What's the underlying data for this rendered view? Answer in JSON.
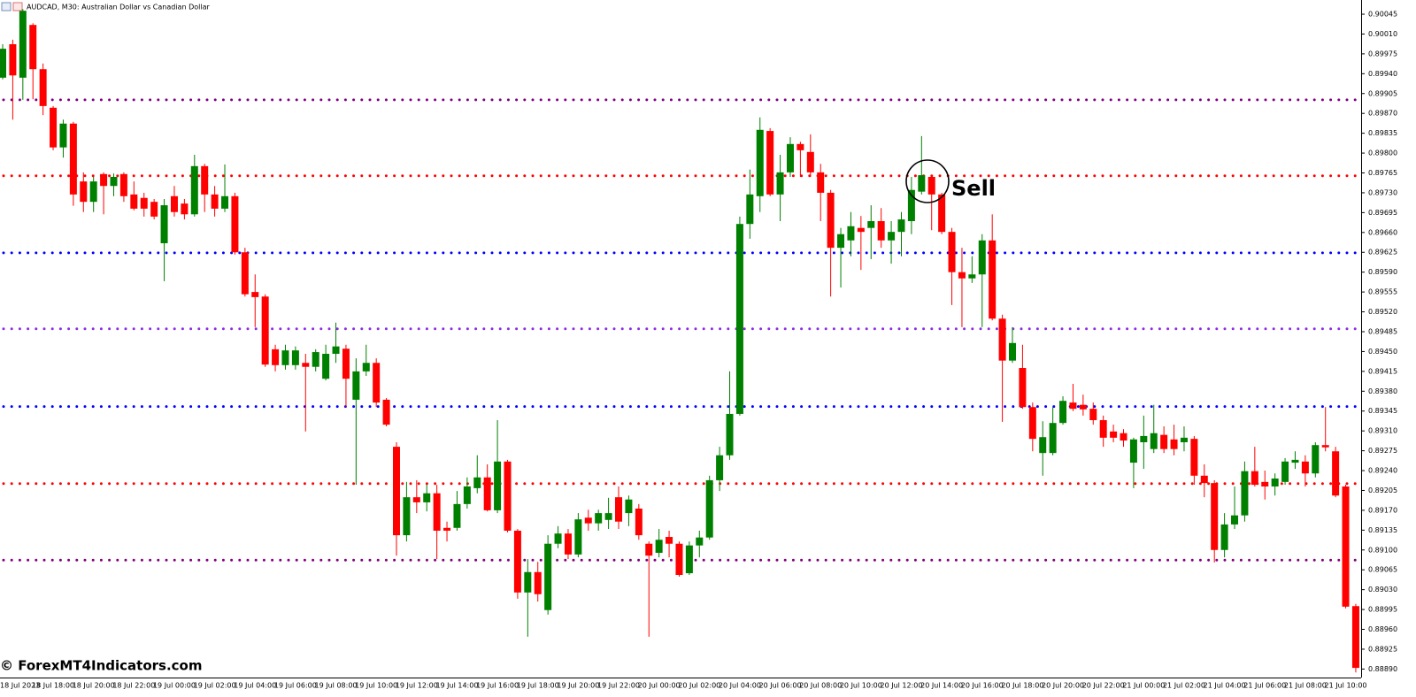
{
  "chart_data": {
    "type": "candlestick",
    "title": "AUDCAD, M30:  Australian Dollar vs Canadian Dollar",
    "watermark": "© ForexMT4Indicators.com",
    "annotation": "Sell",
    "up_color": "#008000",
    "down_color": "#ff0000",
    "categories": [
      "18 Jul 2023",
      null,
      null,
      null,
      null,
      "18 Jul 18:00",
      null,
      null,
      null,
      "18 Jul 20:00",
      null,
      null,
      null,
      "18 Jul 22:00",
      null,
      null,
      null,
      "19 Jul 00:00",
      null,
      null,
      null,
      "19 Jul 02:00",
      null,
      null,
      null,
      "19 Jul 04:00",
      null,
      null,
      null,
      "19 Jul 06:00",
      null,
      null,
      null,
      "19 Jul 08:00",
      null,
      null,
      null,
      "19 Jul 10:00",
      null,
      null,
      null,
      "19 Jul 12:00",
      null,
      null,
      null,
      "19 Jul 14:00",
      null,
      null,
      null,
      "19 Jul 16:00",
      null,
      null,
      null,
      "19 Jul 18:00",
      null,
      null,
      null,
      "19 Jul 20:00",
      null,
      null,
      null,
      "19 Jul 22:00",
      null,
      null,
      null,
      "20 Jul 00:00",
      null,
      null,
      null,
      "20 Jul 02:00",
      null,
      null,
      null,
      "20 Jul 04:00",
      null,
      null,
      null,
      "20 Jul 06:00",
      null,
      null,
      null,
      "20 Jul 08:00",
      null,
      null,
      null,
      "20 Jul 10:00",
      null,
      null,
      null,
      "20 Jul 12:00",
      null,
      null,
      null,
      "20 Jul 14:00",
      null,
      null,
      null,
      "20 Jul 16:00",
      null,
      null,
      null,
      "20 Jul 18:00",
      null,
      null,
      null,
      "20 Jul 20:00",
      null,
      null,
      null,
      "20 Jul 22:00",
      null,
      null,
      null,
      "21 Jul 00:00",
      null,
      null,
      null,
      "21 Jul 02:00",
      null,
      null,
      null,
      "21 Jul 04:00",
      null,
      null,
      null,
      "21 Jul 06:00",
      null,
      null,
      null,
      "21 Jul 08:00",
      null,
      null,
      null,
      "21 Jul 10:00",
      null
    ],
    "open": [
      0.89933,
      0.89992,
      0.89933,
      0.90026,
      0.89948,
      0.8988,
      0.8981,
      0.89852,
      0.8975,
      0.89714,
      0.89763,
      0.89742,
      0.89763,
      0.89727,
      0.89721,
      0.89714,
      0.89641,
      0.89724,
      0.89711,
      0.89692,
      0.89777,
      0.89727,
      0.89702,
      0.89724,
      0.89625,
      0.89555,
      0.89547,
      0.89454,
      0.89426,
      0.89426,
      0.8943,
      0.89423,
      0.89402,
      0.89446,
      0.89455,
      0.89365,
      0.89415,
      0.8943,
      0.89365,
      0.89282,
      0.89126,
      0.89193,
      0.89184,
      0.892,
      0.89139,
      0.89139,
      0.89181,
      0.89209,
      0.89228,
      0.8917,
      0.89256,
      0.89134,
      0.89025,
      0.89061,
      0.88994,
      0.89111,
      0.89129,
      0.89092,
      0.89157,
      0.89147,
      0.89153,
      0.89193,
      0.89165,
      0.89173,
      0.89111,
      0.89095,
      0.89123,
      0.89111,
      0.89059,
      0.89108,
      0.89122,
      0.89223,
      0.89267,
      0.8934,
      0.89675,
      0.89724,
      0.89839,
      0.89727,
      0.89766,
      0.89816,
      0.89802,
      0.89766,
      0.8973,
      0.89633,
      0.89646,
      0.89668,
      0.89668,
      0.8968,
      0.89646,
      0.89661,
      0.8968,
      0.89732,
      0.89758,
      0.89727,
      0.89661,
      0.8959,
      0.89579,
      0.89586,
      0.89646,
      0.89508,
      0.89434,
      0.89421,
      0.89352,
      0.89271,
      0.89271,
      0.89324,
      0.8936,
      0.89356,
      0.89349,
      0.89329,
      0.89309,
      0.89306,
      0.89254,
      0.8929,
      0.89278,
      0.89303,
      0.89295,
      0.8929,
      0.89296,
      0.89231,
      0.89218,
      0.891,
      0.89145,
      0.89161,
      0.89239,
      0.8922,
      0.89212,
      0.8922,
      0.89254,
      0.89256,
      0.89235,
      0.89285,
      0.89274,
      0.89212,
      0.89001
    ],
    "high": [
      0.89992,
      0.9,
      0.90054,
      0.90029,
      0.89958,
      0.89883,
      0.89859,
      0.89855,
      0.89766,
      0.89758,
      0.89766,
      0.89764,
      0.89766,
      0.8975,
      0.8973,
      0.89719,
      0.89719,
      0.89742,
      0.89719,
      0.89797,
      0.89781,
      0.89742,
      0.8978,
      0.8973,
      0.89633,
      0.89586,
      0.89551,
      0.89462,
      0.89462,
      0.89459,
      0.89446,
      0.89454,
      0.89462,
      0.89501,
      0.89462,
      0.89438,
      0.89462,
      0.89438,
      0.89368,
      0.8929,
      0.8922,
      0.89223,
      0.89215,
      0.89215,
      0.8915,
      0.89204,
      0.89228,
      0.89267,
      0.89251,
      0.89329,
      0.89259,
      0.89137,
      0.89084,
      0.89079,
      0.89126,
      0.89142,
      0.89137,
      0.89165,
      0.89171,
      0.89171,
      0.89192,
      0.89212,
      0.89196,
      0.89181,
      0.89115,
      0.89137,
      0.89134,
      0.89115,
      0.89115,
      0.89134,
      0.89231,
      0.89282,
      0.89415,
      0.89688,
      0.89771,
      0.89863,
      0.89844,
      0.89797,
      0.89828,
      0.8982,
      0.89833,
      0.89781,
      0.89735,
      0.89668,
      0.89696,
      0.89689,
      0.89708,
      0.89703,
      0.8968,
      0.89696,
      0.89758,
      0.8983,
      0.89761,
      0.8973,
      0.89668,
      0.89633,
      0.89618,
      0.89657,
      0.89692,
      0.89515,
      0.89493,
      0.89462,
      0.8936,
      0.89327,
      0.89352,
      0.89371,
      0.89393,
      0.89374,
      0.8936,
      0.89337,
      0.89321,
      0.89313,
      0.89298,
      0.89337,
      0.89356,
      0.89318,
      0.89321,
      0.89318,
      0.89301,
      0.89251,
      0.89223,
      0.89165,
      0.89212,
      0.89256,
      0.89282,
      0.8924,
      0.89235,
      0.89262,
      0.89274,
      0.89267,
      0.8929,
      0.89352,
      0.89282,
      0.89215,
      0.89005
    ],
    "low": [
      0.8993,
      0.89859,
      0.89894,
      0.89895,
      0.89867,
      0.89805,
      0.89792,
      0.89707,
      0.89696,
      0.89696,
      0.89692,
      0.89724,
      0.89714,
      0.89699,
      0.89688,
      0.89683,
      0.89574,
      0.89688,
      0.89683,
      0.89688,
      0.89696,
      0.89688,
      0.89696,
      0.89621,
      0.89547,
      0.89493,
      0.89423,
      0.89415,
      0.89418,
      0.89418,
      0.89309,
      0.89415,
      0.89399,
      0.8943,
      0.89352,
      0.89215,
      0.89407,
      0.89352,
      0.89318,
      0.8909,
      0.89115,
      0.89165,
      0.89168,
      0.89084,
      0.89115,
      0.89134,
      0.89173,
      0.892,
      0.89168,
      0.89165,
      0.89131,
      0.89014,
      0.88947,
      0.89009,
      0.88986,
      0.89103,
      0.89084,
      0.89087,
      0.89134,
      0.89134,
      0.89137,
      0.89137,
      0.89142,
      0.89118,
      0.88947,
      0.89087,
      0.89087,
      0.89053,
      0.89056,
      0.89087,
      0.89118,
      0.89204,
      0.89259,
      0.89337,
      0.89649,
      0.89696,
      0.89724,
      0.8968,
      0.89758,
      0.89758,
      0.89758,
      0.8968,
      0.89547,
      0.89563,
      0.89618,
      0.89594,
      0.89613,
      0.89633,
      0.89605,
      0.89618,
      0.89657,
      0.89727,
      0.89664,
      0.89657,
      0.89532,
      0.89493,
      0.89571,
      0.89493,
      0.89505,
      0.89326,
      0.8943,
      0.89349,
      0.89274,
      0.89231,
      0.89267,
      0.89321,
      0.89345,
      0.89337,
      0.89321,
      0.89282,
      0.8929,
      0.89282,
      0.89209,
      0.89243,
      0.89271,
      0.89271,
      0.89267,
      0.89274,
      0.89215,
      0.89193,
      0.89078,
      0.89087,
      0.89137,
      0.8915,
      0.89212,
      0.89189,
      0.89196,
      0.89215,
      0.89243,
      0.89212,
      0.89228,
      0.89274,
      0.89193,
      0.88997,
      0.88884
    ],
    "close": [
      0.89984,
      0.89937,
      0.90051,
      0.89948,
      0.89883,
      0.8981,
      0.89852,
      0.89727,
      0.89714,
      0.8975,
      0.89742,
      0.89758,
      0.89724,
      0.89702,
      0.89702,
      0.89688,
      0.89708,
      0.89696,
      0.89692,
      0.89777,
      0.89727,
      0.89702,
      0.89724,
      0.89625,
      0.89551,
      0.89546,
      0.89427,
      0.89426,
      0.89452,
      0.89452,
      0.89423,
      0.89449,
      0.89446,
      0.89459,
      0.89402,
      0.89415,
      0.8943,
      0.8936,
      0.89321,
      0.89126,
      0.89193,
      0.89184,
      0.892,
      0.89134,
      0.89134,
      0.89181,
      0.89212,
      0.89228,
      0.8917,
      0.89256,
      0.89134,
      0.89025,
      0.89061,
      0.89022,
      0.89111,
      0.89129,
      0.89092,
      0.89154,
      0.89147,
      0.89165,
      0.89165,
      0.8915,
      0.89189,
      0.89126,
      0.8909,
      0.89118,
      0.89111,
      0.89056,
      0.89108,
      0.89122,
      0.89223,
      0.89267,
      0.8934,
      0.89675,
      0.89727,
      0.89841,
      0.89727,
      0.89766,
      0.89816,
      0.89805,
      0.89766,
      0.8973,
      0.89633,
      0.89657,
      0.89671,
      0.89661,
      0.8968,
      0.89646,
      0.89661,
      0.89683,
      0.89735,
      0.89761,
      0.89727,
      0.89661,
      0.8959,
      0.89579,
      0.89586,
      0.89646,
      0.89508,
      0.89434,
      0.89465,
      0.89352,
      0.89296,
      0.89299,
      0.89324,
      0.89363,
      0.89349,
      0.89348,
      0.89329,
      0.89298,
      0.89298,
      0.89293,
      0.89295,
      0.89301,
      0.89306,
      0.89278,
      0.89278,
      0.89298,
      0.89231,
      0.89218,
      0.891,
      0.89145,
      0.89161,
      0.89239,
      0.89215,
      0.89212,
      0.89226,
      0.89256,
      0.89259,
      0.89235,
      0.89285,
      0.89281,
      0.89196,
      0.89,
      0.88892
    ],
    "levels": [
      {
        "value": 0.89894,
        "color": "#800080"
      },
      {
        "value": 0.8976,
        "color": "#ff0000"
      },
      {
        "value": 0.89624,
        "color": "#0000ff"
      },
      {
        "value": 0.8949,
        "color": "#8a2be2"
      },
      {
        "value": 0.89353,
        "color": "#0000ff"
      },
      {
        "value": 0.89217,
        "color": "#ff0000"
      },
      {
        "value": 0.89082,
        "color": "#800080"
      }
    ],
    "ylim": [
      0.88875,
      0.9007
    ],
    "yticks": [
      0.90045,
      {
        "value": 0.9001,
        "label": "0.90010"
      },
      0.89975,
      {
        "value": 0.8994,
        "label": "0.89940"
      },
      0.89905,
      {
        "value": 0.8987,
        "label": "0.89870"
      },
      0.89835,
      {
        "value": 0.898,
        "label": "0.89800"
      },
      0.89765,
      {
        "value": 0.8973,
        "label": "0.89730"
      },
      0.89695,
      {
        "value": 0.8966,
        "label": "0.89660"
      },
      0.89625,
      {
        "value": 0.8959,
        "label": "0.89590"
      },
      0.89555,
      {
        "value": 0.8952,
        "label": "0.89520"
      },
      0.89485,
      {
        "value": 0.8945,
        "label": "0.89450"
      },
      0.89415,
      {
        "value": 0.8938,
        "label": "0.89380"
      },
      0.89345,
      {
        "value": 0.8931,
        "label": "0.89310"
      },
      0.89275,
      {
        "value": 0.8924,
        "label": "0.89240"
      },
      0.89205,
      {
        "value": 0.8917,
        "label": "0.89170"
      },
      0.89135,
      {
        "value": 0.891,
        "label": "0.89100"
      },
      0.89065,
      {
        "value": 0.8903,
        "label": "0.89030"
      },
      0.88995,
      {
        "value": 0.8896,
        "label": "0.88960"
      },
      0.88925,
      {
        "value": 0.8889,
        "label": "0.88890"
      }
    ]
  }
}
